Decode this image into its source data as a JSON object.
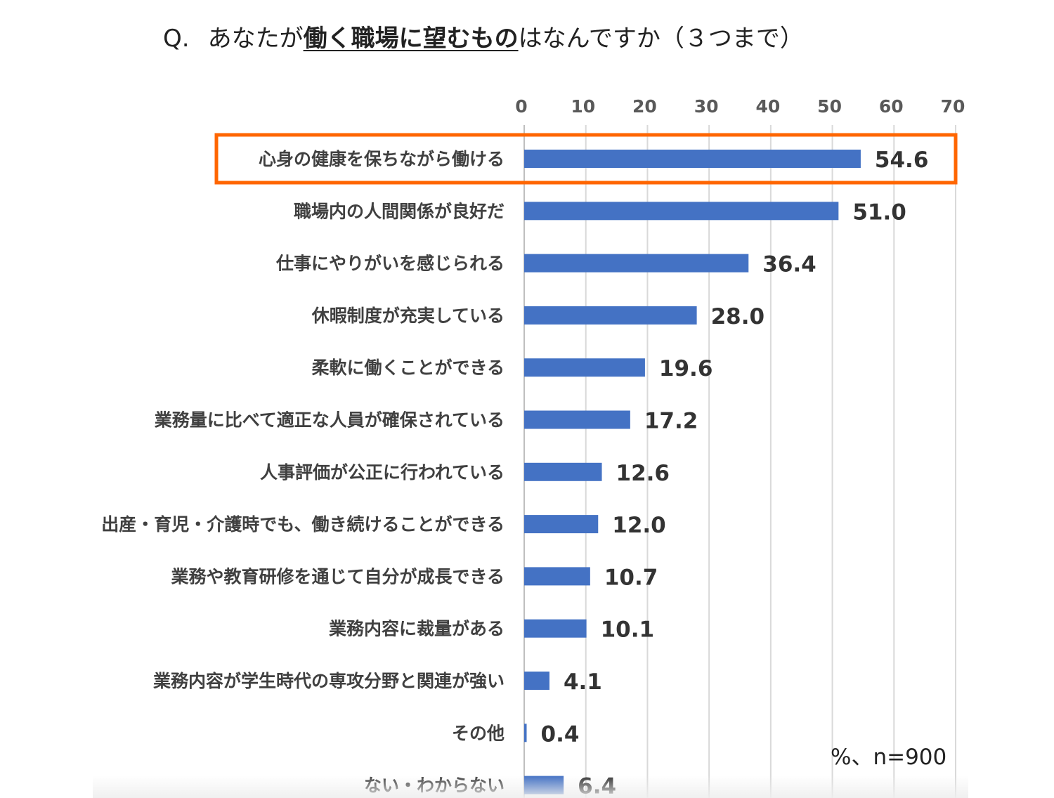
{
  "question": {
    "prefix": "Q.",
    "before": "あなたが",
    "emphasis": "働く職場に望むもの",
    "after": "はなんですか（３つまで）"
  },
  "note": "%、n=900",
  "colors": {
    "bar": "#4472C4",
    "highlight": "#FF6600",
    "grid": "#D9D9D9"
  },
  "highlight_index": 0,
  "chart_data": {
    "type": "bar",
    "orientation": "horizontal",
    "xlim": [
      0,
      70
    ],
    "xticks": [
      0,
      10,
      20,
      30,
      40,
      50,
      60,
      70
    ],
    "xaxis_position": "top",
    "grid": true,
    "categories": [
      "心身の健康を保ちながら働ける",
      "職場内の人間関係が良好だ",
      "仕事にやりがいを感じられる",
      "休暇制度が充実している",
      "柔軟に働くことができる",
      "業務量に比べて適正な人員が確保されている",
      "人事評価が公正に行われている",
      "出産・育児・介護時でも、働き続けることができる",
      "業務や教育研修を通じて自分が成長できる",
      "業務内容に裁量がある",
      "業務内容が学生時代の専攻分野と関連が強い",
      "その他",
      "ない・わからない"
    ],
    "values": [
      54.6,
      51.0,
      36.4,
      28.0,
      19.6,
      17.2,
      12.6,
      12.0,
      10.7,
      10.1,
      4.1,
      0.4,
      6.4
    ],
    "value_labels": [
      "54.6",
      "51.0",
      "36.4",
      "28.0",
      "19.6",
      "17.2",
      "12.6",
      "12.0",
      "10.7",
      "10.1",
      "4.1",
      "0.4",
      "6.4"
    ]
  }
}
